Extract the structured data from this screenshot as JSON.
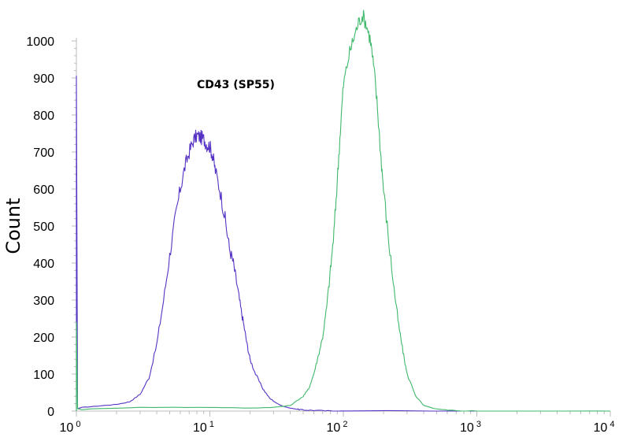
{
  "chart_data": {
    "type": "line",
    "title": "",
    "xlabel": "",
    "ylabel": "Count",
    "annotation": "CD43 (SP55)",
    "x_scale": "log",
    "xlim": [
      1,
      10000
    ],
    "ylim": [
      0,
      1000
    ],
    "x_ticks": [
      {
        "value": 1,
        "base": "10",
        "exp": "0"
      },
      {
        "value": 10,
        "base": "10",
        "exp": "1"
      },
      {
        "value": 100,
        "base": "10",
        "exp": "2"
      },
      {
        "value": 1000,
        "base": "10",
        "exp": "3"
      },
      {
        "value": 10000,
        "base": "10",
        "exp": "4"
      }
    ],
    "y_ticks": [
      0,
      100,
      200,
      300,
      400,
      500,
      600,
      700,
      800,
      900,
      1000
    ],
    "grid": false,
    "series": [
      {
        "color": "#5533c4",
        "spike": {
          "x": 1.0,
          "y": 905
        },
        "x": [
          1.1,
          1.5,
          2.0,
          2.5,
          3.0,
          3.5,
          4.0,
          4.5,
          5.0,
          5.5,
          6.0,
          6.5,
          7.0,
          7.5,
          8.0,
          8.5,
          9.0,
          9.5,
          10.0,
          10.5,
          11.0,
          12.0,
          13.0,
          14.0,
          15.0,
          16.0,
          17.0,
          18.0,
          19.0,
          20.0,
          22.0,
          25.0,
          28.0,
          32.0,
          36.0,
          40.0,
          45.0,
          50.0,
          60.0,
          80.0,
          100.0,
          10000.0
        ],
        "y": [
          10,
          14,
          18,
          25,
          45,
          90,
          180,
          300,
          420,
          520,
          600,
          660,
          700,
          730,
          745,
          740,
          735,
          720,
          715,
          690,
          650,
          590,
          520,
          440,
          400,
          340,
          280,
          230,
          180,
          140,
          100,
          60,
          35,
          20,
          12,
          8,
          5,
          3,
          2,
          0,
          0,
          0
        ]
      },
      {
        "color": "#40b86a",
        "spike": {
          "x": 1.0,
          "y": 240
        },
        "x": [
          1.1,
          3.0,
          10.0,
          20.0,
          30.0,
          40.0,
          50.0,
          55.0,
          60.0,
          65.0,
          70.0,
          75.0,
          80.0,
          85.0,
          90.0,
          95.0,
          100.0,
          110.0,
          120.0,
          130.0,
          140.0,
          150.0,
          160.0,
          170.0,
          180.0,
          190.0,
          200.0,
          220.0,
          240.0,
          260.0,
          280.0,
          300.0,
          350.0,
          400.0,
          500.0,
          600.0,
          1000.0,
          10000.0
        ],
        "y": [
          5,
          10,
          10,
          8,
          10,
          15,
          40,
          60,
          100,
          150,
          200,
          280,
          380,
          480,
          620,
          760,
          880,
          960,
          1010,
          1050,
          1070,
          1040,
          1000,
          920,
          820,
          700,
          600,
          450,
          330,
          230,
          160,
          100,
          40,
          15,
          5,
          2,
          0,
          0
        ]
      }
    ]
  }
}
